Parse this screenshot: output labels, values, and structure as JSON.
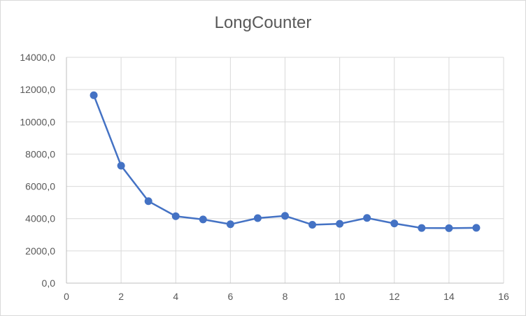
{
  "chart_data": {
    "type": "scatter",
    "title": "LongCounter",
    "xlabel": "",
    "ylabel": "",
    "xlim": [
      0,
      16
    ],
    "ylim": [
      0,
      14000
    ],
    "x_ticks": [
      0,
      2,
      4,
      6,
      8,
      10,
      12,
      14,
      16
    ],
    "y_ticks": [
      0,
      2000,
      4000,
      6000,
      8000,
      10000,
      12000,
      14000
    ],
    "x_tick_labels": [
      "0",
      "2",
      "4",
      "6",
      "8",
      "10",
      "12",
      "14",
      "16"
    ],
    "y_tick_labels": [
      "0,0",
      "2000,0",
      "4000,0",
      "6000,0",
      "8000,0",
      "10000,0",
      "12000,0",
      "14000,0"
    ],
    "grid": true,
    "legend": "none",
    "colors": {
      "series": "#4472c4",
      "grid": "#d9d9d9",
      "text": "#595959"
    },
    "series": [
      {
        "x": [
          1,
          2,
          3,
          4,
          5,
          6,
          7,
          8,
          9,
          10,
          11,
          12,
          13,
          14,
          15
        ],
        "y": [
          11650,
          7280,
          5080,
          4150,
          3950,
          3650,
          4030,
          4170,
          3620,
          3680,
          4040,
          3700,
          3420,
          3410,
          3430
        ]
      }
    ]
  }
}
